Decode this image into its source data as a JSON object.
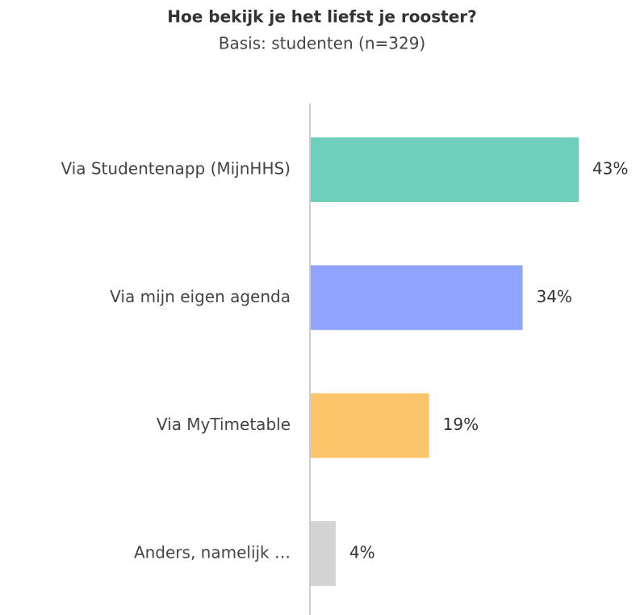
{
  "chart_data": {
    "type": "bar",
    "orientation": "horizontal",
    "title": "Hoe bekijk je het liefst je rooster?",
    "subtitle": "Basis: studenten (n=329)",
    "categories": [
      "Via Studentenapp (MijnHHS)",
      "Via mijn eigen agenda",
      "Via MyTimetable",
      "Anders, namelijk …"
    ],
    "values": [
      43,
      34,
      19,
      4
    ],
    "value_labels": [
      "43%",
      "34%",
      "19%",
      "4%"
    ],
    "colors": [
      "#6fcfbd",
      "#8fa3ff",
      "#fdc56a",
      "#d3d3d3"
    ]
  }
}
